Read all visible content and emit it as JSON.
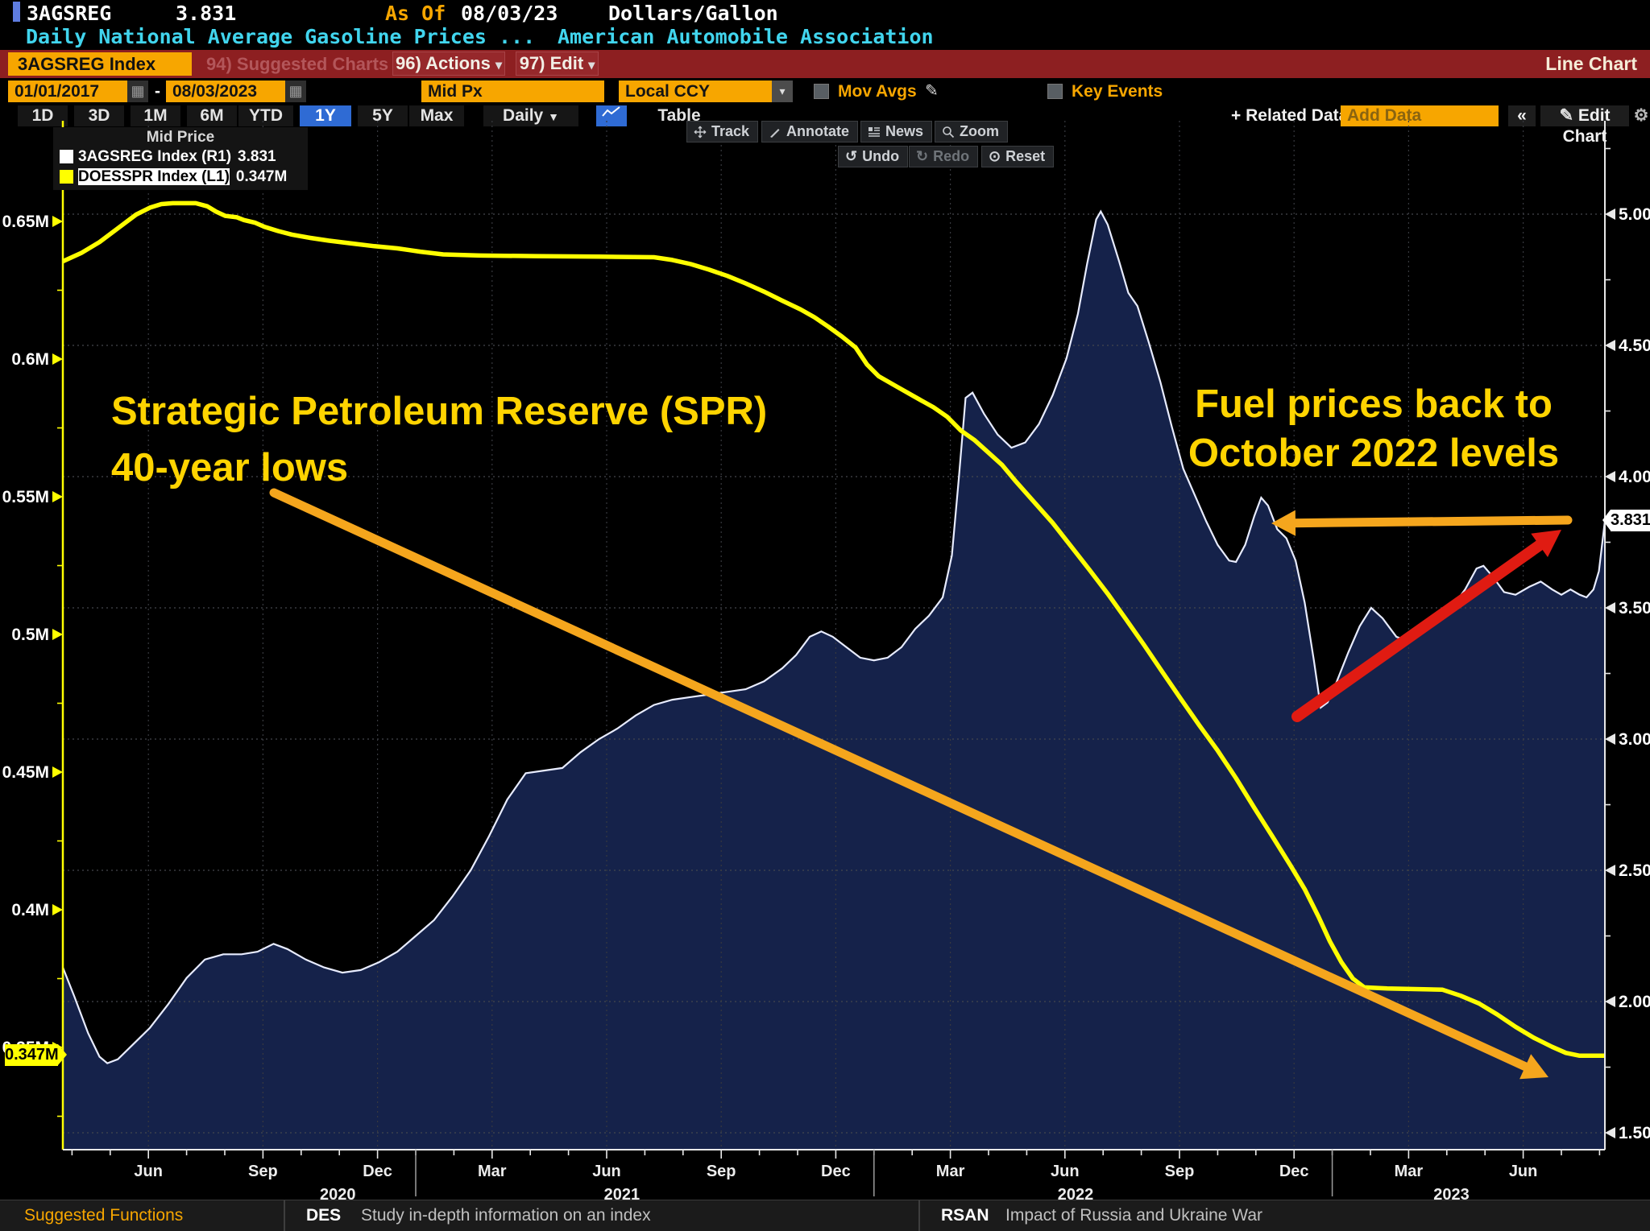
{
  "header": {
    "ticker": "3AGSREG",
    "last_price": "3.831",
    "as_of_label": "As Of",
    "as_of_date": "08/03/23",
    "unit": "Dollars/Gallon",
    "description": "Daily National Average Gasoline Prices ...",
    "source": "American Automobile Association"
  },
  "menubar": {
    "security_button": "3AGSREG Index",
    "suggested_charts": "94) Suggested Charts",
    "actions": "96) Actions",
    "edit": "97) Edit",
    "chart_type": "Line Chart"
  },
  "controls": {
    "date_from": "01/01/2017",
    "date_to": "08/03/2023",
    "price_field": "Mid Px",
    "currency": "Local CCY",
    "mov_avgs_label": "Mov Avgs",
    "key_events_label": "Key Events"
  },
  "tabbar": {
    "periods": [
      "1D",
      "3D",
      "1M",
      "6M",
      "YTD",
      "1Y",
      "5Y",
      "Max"
    ],
    "active_period": "1Y",
    "frequency": "Daily",
    "table_label": "Table",
    "related_data_label": "+ Related Data",
    "add_data_placeholder": "Add Data",
    "collapse_label": "«",
    "edit_chart_label": "Edit Chart"
  },
  "chart_toolbar": {
    "track": "Track",
    "annotate": "Annotate",
    "news": "News",
    "zoom": "Zoom",
    "undo": "Undo",
    "redo": "Redo",
    "reset": "Reset"
  },
  "legend": {
    "title": "Mid Price",
    "series": [
      {
        "label": "3AGSREG Index  (R1)",
        "value": "3.831"
      },
      {
        "label": "DOESSPR Index  (L1)",
        "value": "0.347M"
      }
    ]
  },
  "annotations": {
    "spr_line1": "Strategic Petroleum Reserve (SPR)",
    "spr_line2": "40-year lows",
    "fuel_line1": "Fuel prices back to",
    "fuel_line2": "October 2022 levels"
  },
  "badges": {
    "left_last": "0.347M",
    "right_last": "3.831"
  },
  "statusbar": {
    "suggested_functions": "Suggested Functions",
    "items": [
      {
        "code": "DES",
        "desc": "Study in-depth information on an index"
      },
      {
        "code": "RSAN",
        "desc": "Impact of Russia and Ukraine War"
      }
    ]
  },
  "colors": {
    "amber": "#f7a600",
    "cyan": "#41d5ee",
    "menubar_red": "#8d1f21",
    "tab_active_blue": "#2f6bd4",
    "series_yellow": "#ffff00",
    "area_fill": "#15224a",
    "area_edge": "#e8ecff",
    "arrow_orange": "#f5a61d",
    "arrow_red": "#e01b12",
    "annotation_yellow": "#ffd400",
    "grid": "#45474d"
  },
  "chart_data": {
    "type": "area+line",
    "title": "Mid Price",
    "left_axis": {
      "series": "DOESSPR Index",
      "ticks": [
        {
          "label": "0.65M",
          "value": 0.65
        },
        {
          "label": "0.6M",
          "value": 0.6
        },
        {
          "label": "0.55M",
          "value": 0.55
        },
        {
          "label": "0.5M",
          "value": 0.5
        },
        {
          "label": "0.45M",
          "value": 0.45
        },
        {
          "label": "0.4M",
          "value": 0.4
        },
        {
          "label": "0.35M",
          "value": 0.35
        }
      ],
      "last_value": 0.347
    },
    "right_axis": {
      "series": "3AGSREG Index",
      "ticks": [
        {
          "label": "5.000",
          "value": 5.0
        },
        {
          "label": "4.500",
          "value": 4.5
        },
        {
          "label": "4.000",
          "value": 4.0
        },
        {
          "label": "3.500",
          "value": 3.5
        },
        {
          "label": "3.000",
          "value": 3.0
        },
        {
          "label": "2.500",
          "value": 2.5
        },
        {
          "label": "2.000",
          "value": 2.0
        },
        {
          "label": "1.500",
          "value": 1.5
        }
      ],
      "last_value": 3.831
    },
    "x_axis": {
      "range": [
        2020.23,
        2023.595
      ],
      "quarter_ticks": [
        {
          "label": "Jun",
          "t": 2020.4167
        },
        {
          "label": "Sep",
          "t": 2020.6667
        },
        {
          "label": "Dec",
          "t": 2020.9167
        },
        {
          "label": "Mar",
          "t": 2021.1667
        },
        {
          "label": "Jun",
          "t": 2021.4167
        },
        {
          "label": "Sep",
          "t": 2021.6667
        },
        {
          "label": "Dec",
          "t": 2021.9167
        },
        {
          "label": "Mar",
          "t": 2022.1667
        },
        {
          "label": "Jun",
          "t": 2022.4167
        },
        {
          "label": "Sep",
          "t": 2022.6667
        },
        {
          "label": "Dec",
          "t": 2022.9167
        },
        {
          "label": "Mar",
          "t": 2023.1667
        },
        {
          "label": "Jun",
          "t": 2023.4167
        }
      ],
      "year_labels": [
        {
          "label": "2020",
          "t": 2020.83
        },
        {
          "label": "2021",
          "t": 2021.45
        },
        {
          "label": "2022",
          "t": 2022.44
        },
        {
          "label": "2023",
          "t": 2023.26
        }
      ],
      "year_separators": [
        2021.0,
        2022.0,
        2023.0
      ]
    },
    "series": [
      {
        "name": "3AGSREG Index",
        "axis": "right",
        "type": "area",
        "points": [
          [
            2020.23,
            2.13
          ],
          [
            2020.255,
            2.02
          ],
          [
            2020.285,
            1.88
          ],
          [
            2020.31,
            1.79
          ],
          [
            2020.327,
            1.765
          ],
          [
            2020.35,
            1.78
          ],
          [
            2020.385,
            1.84
          ],
          [
            2020.42,
            1.9
          ],
          [
            2020.46,
            1.99
          ],
          [
            2020.5,
            2.09
          ],
          [
            2020.54,
            2.16
          ],
          [
            2020.58,
            2.18
          ],
          [
            2020.62,
            2.18
          ],
          [
            2020.655,
            2.19
          ],
          [
            2020.69,
            2.22
          ],
          [
            2020.72,
            2.2
          ],
          [
            2020.76,
            2.16
          ],
          [
            2020.8,
            2.13
          ],
          [
            2020.84,
            2.11
          ],
          [
            2020.88,
            2.12
          ],
          [
            2020.92,
            2.15
          ],
          [
            2020.96,
            2.19
          ],
          [
            2021.0,
            2.25
          ],
          [
            2021.04,
            2.31
          ],
          [
            2021.08,
            2.4
          ],
          [
            2021.12,
            2.5
          ],
          [
            2021.16,
            2.63
          ],
          [
            2021.2,
            2.77
          ],
          [
            2021.24,
            2.87
          ],
          [
            2021.28,
            2.88
          ],
          [
            2021.32,
            2.89
          ],
          [
            2021.36,
            2.95
          ],
          [
            2021.4,
            3.0
          ],
          [
            2021.44,
            3.04
          ],
          [
            2021.48,
            3.09
          ],
          [
            2021.52,
            3.13
          ],
          [
            2021.56,
            3.15
          ],
          [
            2021.6,
            3.16
          ],
          [
            2021.64,
            3.17
          ],
          [
            2021.68,
            3.18
          ],
          [
            2021.72,
            3.19
          ],
          [
            2021.76,
            3.22
          ],
          [
            2021.8,
            3.27
          ],
          [
            2021.83,
            3.32
          ],
          [
            2021.86,
            3.39
          ],
          [
            2021.885,
            3.41
          ],
          [
            2021.91,
            3.39
          ],
          [
            2021.94,
            3.35
          ],
          [
            2021.97,
            3.31
          ],
          [
            2022.0,
            3.3
          ],
          [
            2022.03,
            3.31
          ],
          [
            2022.06,
            3.35
          ],
          [
            2022.09,
            3.42
          ],
          [
            2022.12,
            3.47
          ],
          [
            2022.15,
            3.54
          ],
          [
            2022.17,
            3.7
          ],
          [
            2022.185,
            3.99
          ],
          [
            2022.2,
            4.3
          ],
          [
            2022.215,
            4.32
          ],
          [
            2022.24,
            4.24
          ],
          [
            2022.27,
            4.16
          ],
          [
            2022.3,
            4.11
          ],
          [
            2022.33,
            4.13
          ],
          [
            2022.36,
            4.2
          ],
          [
            2022.39,
            4.31
          ],
          [
            2022.42,
            4.45
          ],
          [
            2022.445,
            4.62
          ],
          [
            2022.465,
            4.81
          ],
          [
            2022.485,
            4.98
          ],
          [
            2022.495,
            5.01
          ],
          [
            2022.51,
            4.96
          ],
          [
            2022.535,
            4.82
          ],
          [
            2022.555,
            4.7
          ],
          [
            2022.575,
            4.65
          ],
          [
            2022.6,
            4.51
          ],
          [
            2022.625,
            4.36
          ],
          [
            2022.65,
            4.19
          ],
          [
            2022.675,
            4.03
          ],
          [
            2022.7,
            3.93
          ],
          [
            2022.725,
            3.83
          ],
          [
            2022.75,
            3.74
          ],
          [
            2022.775,
            3.68
          ],
          [
            2022.79,
            3.675
          ],
          [
            2022.81,
            3.74
          ],
          [
            2022.83,
            3.85
          ],
          [
            2022.845,
            3.92
          ],
          [
            2022.86,
            3.89
          ],
          [
            2022.88,
            3.8
          ],
          [
            2022.9,
            3.765
          ],
          [
            2022.92,
            3.68
          ],
          [
            2022.94,
            3.52
          ],
          [
            2022.96,
            3.3
          ],
          [
            2022.975,
            3.12
          ],
          [
            2022.99,
            3.14
          ],
          [
            2023.01,
            3.22
          ],
          [
            2023.035,
            3.33
          ],
          [
            2023.06,
            3.43
          ],
          [
            2023.085,
            3.5
          ],
          [
            2023.11,
            3.46
          ],
          [
            2023.14,
            3.39
          ],
          [
            2023.17,
            3.37
          ],
          [
            2023.2,
            3.43
          ],
          [
            2023.23,
            3.46
          ],
          [
            2023.26,
            3.5
          ],
          [
            2023.29,
            3.57
          ],
          [
            2023.315,
            3.65
          ],
          [
            2023.33,
            3.66
          ],
          [
            2023.35,
            3.62
          ],
          [
            2023.375,
            3.56
          ],
          [
            2023.4,
            3.55
          ],
          [
            2023.43,
            3.58
          ],
          [
            2023.455,
            3.6
          ],
          [
            2023.48,
            3.57
          ],
          [
            2023.5,
            3.55
          ],
          [
            2023.52,
            3.57
          ],
          [
            2023.54,
            3.55
          ],
          [
            2023.555,
            3.54
          ],
          [
            2023.57,
            3.57
          ],
          [
            2023.582,
            3.64
          ],
          [
            2023.595,
            3.831
          ]
        ]
      },
      {
        "name": "DOESSPR Index",
        "axis": "left",
        "type": "line",
        "points": [
          [
            2020.23,
            0.6355
          ],
          [
            2020.27,
            0.6385
          ],
          [
            2020.31,
            0.6425
          ],
          [
            2020.35,
            0.6475
          ],
          [
            2020.39,
            0.6525
          ],
          [
            2020.42,
            0.655
          ],
          [
            2020.445,
            0.6563
          ],
          [
            2020.47,
            0.6566
          ],
          [
            2020.52,
            0.6566
          ],
          [
            2020.545,
            0.6555
          ],
          [
            2020.565,
            0.6535
          ],
          [
            2020.585,
            0.652
          ],
          [
            2020.61,
            0.6515
          ],
          [
            2020.625,
            0.6505
          ],
          [
            2020.65,
            0.6495
          ],
          [
            2020.67,
            0.648
          ],
          [
            2020.7,
            0.6465
          ],
          [
            2020.73,
            0.6452
          ],
          [
            2020.77,
            0.644
          ],
          [
            2020.81,
            0.643
          ],
          [
            2020.86,
            0.642
          ],
          [
            2020.91,
            0.641
          ],
          [
            2020.96,
            0.6402
          ],
          [
            2021.01,
            0.639
          ],
          [
            2021.06,
            0.638
          ],
          [
            2021.14,
            0.6376
          ],
          [
            2021.26,
            0.6374
          ],
          [
            2021.4,
            0.6372
          ],
          [
            2021.52,
            0.637
          ],
          [
            2021.56,
            0.636
          ],
          [
            2021.6,
            0.6345
          ],
          [
            2021.64,
            0.6325
          ],
          [
            2021.68,
            0.6302
          ],
          [
            2021.72,
            0.6275
          ],
          [
            2021.76,
            0.6245
          ],
          [
            2021.8,
            0.6212
          ],
          [
            2021.84,
            0.618
          ],
          [
            2021.87,
            0.6152
          ],
          [
            2021.9,
            0.6118
          ],
          [
            2021.93,
            0.6082
          ],
          [
            2021.96,
            0.6042
          ],
          [
            2021.985,
            0.598
          ],
          [
            2022.01,
            0.5938
          ],
          [
            2022.05,
            0.59
          ],
          [
            2022.09,
            0.5862
          ],
          [
            2022.13,
            0.5825
          ],
          [
            2022.16,
            0.579
          ],
          [
            2022.19,
            0.574
          ],
          [
            2022.22,
            0.5705
          ],
          [
            2022.25,
            0.566
          ],
          [
            2022.28,
            0.5615
          ],
          [
            2022.31,
            0.5555
          ],
          [
            2022.35,
            0.548
          ],
          [
            2022.39,
            0.5405
          ],
          [
            2022.43,
            0.532
          ],
          [
            2022.47,
            0.5235
          ],
          [
            2022.51,
            0.5148
          ],
          [
            2022.55,
            0.5055
          ],
          [
            2022.59,
            0.496
          ],
          [
            2022.63,
            0.4862
          ],
          [
            2022.67,
            0.4765
          ],
          [
            2022.71,
            0.467
          ],
          [
            2022.75,
            0.4578
          ],
          [
            2022.79,
            0.4478
          ],
          [
            2022.83,
            0.437
          ],
          [
            2022.87,
            0.4265
          ],
          [
            2022.91,
            0.4158
          ],
          [
            2022.94,
            0.4075
          ],
          [
            2022.97,
            0.3975
          ],
          [
            2022.995,
            0.3885
          ],
          [
            2023.02,
            0.381
          ],
          [
            2023.045,
            0.375
          ],
          [
            2023.07,
            0.3718
          ],
          [
            2023.12,
            0.3714
          ],
          [
            2023.18,
            0.3712
          ],
          [
            2023.24,
            0.371
          ],
          [
            2023.28,
            0.3688
          ],
          [
            2023.32,
            0.366
          ],
          [
            2023.36,
            0.362
          ],
          [
            2023.4,
            0.3575
          ],
          [
            2023.44,
            0.3535
          ],
          [
            2023.48,
            0.3502
          ],
          [
            2023.51,
            0.348
          ],
          [
            2023.54,
            0.347
          ],
          [
            2023.595,
            0.347
          ]
        ]
      }
    ]
  }
}
